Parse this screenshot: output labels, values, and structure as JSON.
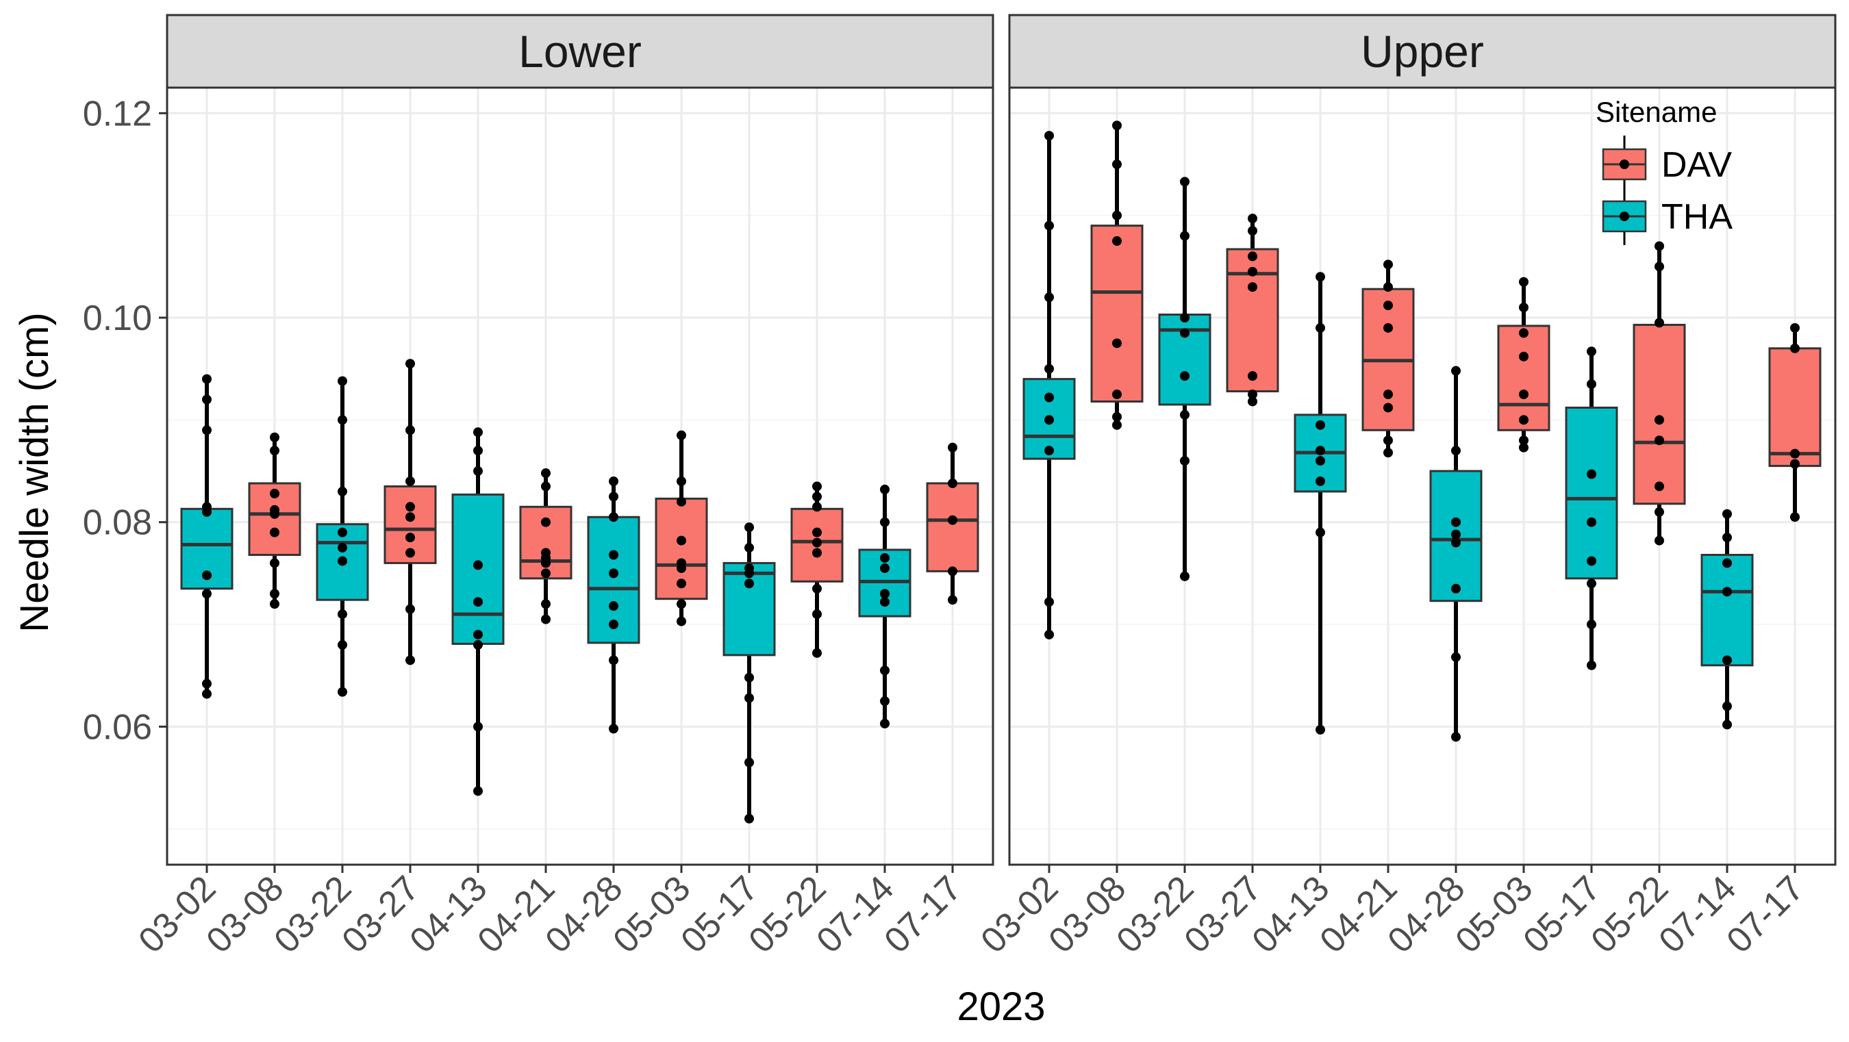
{
  "chart_data": {
    "type": "box",
    "ylabel": "Needle width (cm)",
    "xlabel": "2023",
    "ylim": [
      0.0465,
      0.1225
    ],
    "yticks": [
      "0.06",
      "0.08",
      "0.10",
      "0.12"
    ],
    "ytick_values": [
      0.06,
      0.08,
      0.1,
      0.12
    ],
    "categories": [
      "03-02",
      "03-08",
      "03-22",
      "03-27",
      "04-13",
      "04-21",
      "04-28",
      "05-03",
      "05-17",
      "05-22",
      "07-14",
      "07-17"
    ],
    "category_site": [
      "THA",
      "DAV",
      "THA",
      "DAV",
      "THA",
      "DAV",
      "THA",
      "DAV",
      "THA",
      "DAV",
      "THA",
      "DAV"
    ],
    "legend": {
      "title": "Sitename",
      "entries": [
        {
          "label": "DAV",
          "color": "#F8766D"
        },
        {
          "label": "THA",
          "color": "#00BFC4"
        }
      ],
      "placement": "top-right (inside Upper panel)"
    },
    "grid": true,
    "panels": [
      {
        "name": "Lower",
        "boxes": [
          {
            "date": "03-02",
            "site": "THA",
            "q1": 0.0735,
            "median": 0.0778,
            "q3": 0.0813,
            "low": 0.0632,
            "high": 0.094,
            "points": [
              0.0632,
              0.0642,
              0.073,
              0.0748,
              0.081,
              0.0815,
              0.089,
              0.092,
              0.094
            ]
          },
          {
            "date": "03-08",
            "site": "DAV",
            "q1": 0.0768,
            "median": 0.0808,
            "q3": 0.0838,
            "low": 0.072,
            "high": 0.0883,
            "points": [
              0.072,
              0.073,
              0.076,
              0.079,
              0.0808,
              0.0812,
              0.0828,
              0.087,
              0.0883
            ]
          },
          {
            "date": "03-22",
            "site": "THA",
            "q1": 0.0724,
            "median": 0.078,
            "q3": 0.0798,
            "low": 0.0634,
            "high": 0.0938,
            "points": [
              0.0634,
              0.068,
              0.071,
              0.0762,
              0.0775,
              0.079,
              0.083,
              0.09,
              0.0938
            ]
          },
          {
            "date": "03-27",
            "site": "DAV",
            "q1": 0.076,
            "median": 0.0793,
            "q3": 0.0835,
            "low": 0.0665,
            "high": 0.0955,
            "points": [
              0.0665,
              0.0715,
              0.077,
              0.0785,
              0.0805,
              0.0815,
              0.084,
              0.089,
              0.0955
            ]
          },
          {
            "date": "04-13",
            "site": "THA",
            "q1": 0.0681,
            "median": 0.071,
            "q3": 0.0827,
            "low": 0.0537,
            "high": 0.0888,
            "points": [
              0.0537,
              0.06,
              0.068,
              0.069,
              0.0722,
              0.0758,
              0.085,
              0.087,
              0.0888
            ]
          },
          {
            "date": "04-21",
            "site": "DAV",
            "q1": 0.0745,
            "median": 0.0762,
            "q3": 0.0815,
            "low": 0.0705,
            "high": 0.0848,
            "points": [
              0.0705,
              0.072,
              0.075,
              0.076,
              0.0765,
              0.077,
              0.08,
              0.0835,
              0.0848
            ]
          },
          {
            "date": "04-28",
            "site": "THA",
            "q1": 0.0682,
            "median": 0.0735,
            "q3": 0.0805,
            "low": 0.0598,
            "high": 0.084,
            "points": [
              0.0598,
              0.0665,
              0.07,
              0.0718,
              0.075,
              0.0768,
              0.0805,
              0.0825,
              0.084
            ]
          },
          {
            "date": "05-03",
            "site": "DAV",
            "q1": 0.0725,
            "median": 0.0758,
            "q3": 0.0823,
            "low": 0.0703,
            "high": 0.0885,
            "points": [
              0.0703,
              0.072,
              0.074,
              0.0755,
              0.076,
              0.0782,
              0.082,
              0.084,
              0.0885
            ]
          },
          {
            "date": "05-17",
            "site": "THA",
            "q1": 0.067,
            "median": 0.075,
            "q3": 0.076,
            "low": 0.051,
            "high": 0.0795,
            "points": [
              0.051,
              0.0565,
              0.0628,
              0.0648,
              0.074,
              0.075,
              0.0755,
              0.0775,
              0.0795
            ]
          },
          {
            "date": "05-22",
            "site": "DAV",
            "q1": 0.0742,
            "median": 0.0781,
            "q3": 0.0813,
            "low": 0.0672,
            "high": 0.0835,
            "points": [
              0.0672,
              0.071,
              0.0735,
              0.077,
              0.078,
              0.079,
              0.0815,
              0.0825,
              0.0835
            ]
          },
          {
            "date": "07-14",
            "site": "THA",
            "q1": 0.0708,
            "median": 0.0742,
            "q3": 0.0773,
            "low": 0.0603,
            "high": 0.0832,
            "points": [
              0.0603,
              0.0625,
              0.0655,
              0.0722,
              0.073,
              0.0755,
              0.0765,
              0.08,
              0.0832
            ]
          },
          {
            "date": "07-17",
            "site": "DAV",
            "q1": 0.0752,
            "median": 0.0802,
            "q3": 0.0838,
            "low": 0.0724,
            "high": 0.0873,
            "points": [
              0.0724,
              0.0752,
              0.0802,
              0.0838,
              0.0873
            ]
          }
        ]
      },
      {
        "name": "Upper",
        "boxes": [
          {
            "date": "03-02",
            "site": "THA",
            "q1": 0.0862,
            "median": 0.0884,
            "q3": 0.094,
            "low": 0.069,
            "high": 0.1178,
            "points": [
              0.069,
              0.0722,
              0.087,
              0.09,
              0.0922,
              0.095,
              0.102,
              0.109,
              0.1178
            ]
          },
          {
            "date": "03-08",
            "site": "DAV",
            "q1": 0.0918,
            "median": 0.1025,
            "q3": 0.109,
            "low": 0.0895,
            "high": 0.1188,
            "points": [
              0.0895,
              0.0903,
              0.0925,
              0.0975,
              0.1075,
              0.11,
              0.115,
              0.1188
            ]
          },
          {
            "date": "03-22",
            "site": "THA",
            "q1": 0.0915,
            "median": 0.0988,
            "q3": 0.1003,
            "low": 0.0747,
            "high": 0.1133,
            "points": [
              0.0747,
              0.086,
              0.0905,
              0.0943,
              0.0985,
              0.1,
              0.108,
              0.1133
            ]
          },
          {
            "date": "03-27",
            "site": "DAV",
            "q1": 0.0928,
            "median": 0.1043,
            "q3": 0.1067,
            "low": 0.0918,
            "high": 0.1097,
            "points": [
              0.0918,
              0.0925,
              0.0943,
              0.103,
              0.1045,
              0.106,
              0.1085,
              0.1097
            ]
          },
          {
            "date": "04-13",
            "site": "THA",
            "q1": 0.083,
            "median": 0.0868,
            "q3": 0.0905,
            "low": 0.0597,
            "high": 0.104,
            "points": [
              0.0597,
              0.079,
              0.084,
              0.086,
              0.087,
              0.0895,
              0.099,
              0.104
            ]
          },
          {
            "date": "04-21",
            "site": "DAV",
            "q1": 0.089,
            "median": 0.0958,
            "q3": 0.1028,
            "low": 0.0868,
            "high": 0.1052,
            "points": [
              0.0868,
              0.088,
              0.0912,
              0.0925,
              0.099,
              0.1012,
              0.103,
              0.1052
            ]
          },
          {
            "date": "04-28",
            "site": "THA",
            "q1": 0.0723,
            "median": 0.0783,
            "q3": 0.085,
            "low": 0.059,
            "high": 0.0948,
            "points": [
              0.059,
              0.0668,
              0.0735,
              0.078,
              0.0788,
              0.08,
              0.087,
              0.0948
            ]
          },
          {
            "date": "05-03",
            "site": "DAV",
            "q1": 0.089,
            "median": 0.0915,
            "q3": 0.0992,
            "low": 0.0873,
            "high": 0.1035,
            "points": [
              0.0873,
              0.088,
              0.09,
              0.0925,
              0.0962,
              0.0985,
              0.101,
              0.1035
            ]
          },
          {
            "date": "05-17",
            "site": "THA",
            "q1": 0.0745,
            "median": 0.0823,
            "q3": 0.0912,
            "low": 0.066,
            "high": 0.0967,
            "points": [
              0.066,
              0.07,
              0.074,
              0.0762,
              0.08,
              0.0847,
              0.0935,
              0.0967
            ]
          },
          {
            "date": "05-22",
            "site": "DAV",
            "q1": 0.0818,
            "median": 0.0878,
            "q3": 0.0993,
            "low": 0.0782,
            "high": 0.107,
            "points": [
              0.0782,
              0.081,
              0.0835,
              0.088,
              0.09,
              0.0995,
              0.105,
              0.107
            ]
          },
          {
            "date": "07-14",
            "site": "THA",
            "q1": 0.066,
            "median": 0.0732,
            "q3": 0.0768,
            "low": 0.0602,
            "high": 0.0808,
            "points": [
              0.0602,
              0.062,
              0.0665,
              0.0732,
              0.076,
              0.0785,
              0.0808
            ]
          },
          {
            "date": "07-17",
            "site": "DAV",
            "q1": 0.0855,
            "median": 0.0867,
            "q3": 0.097,
            "low": 0.0805,
            "high": 0.099,
            "points": [
              0.0805,
              0.0857,
              0.0867,
              0.097,
              0.099
            ]
          }
        ]
      }
    ]
  }
}
